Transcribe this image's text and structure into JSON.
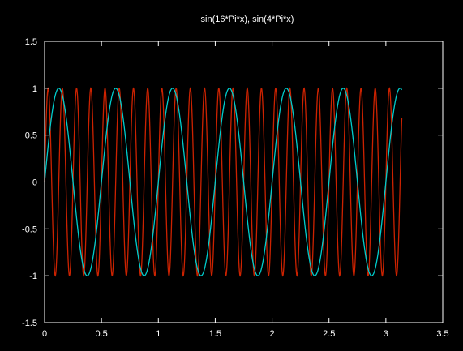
{
  "chart_data": {
    "type": "line",
    "title": "sin(16*Pi*x), sin(4*Pi*x)",
    "xlabel": "",
    "ylabel": "",
    "xlim": [
      0,
      3.5
    ],
    "ylim": [
      -1.5,
      1.5
    ],
    "xticks": [
      0,
      0.5,
      1,
      1.5,
      2,
      2.5,
      3,
      3.5
    ],
    "yticks": [
      -1.5,
      -1,
      -0.5,
      0,
      0.5,
      1,
      1.5
    ],
    "xtick_labels": [
      "0",
      "0.5",
      "1",
      "1.5",
      "2",
      "2.5",
      "3",
      "3.5"
    ],
    "ytick_labels": [
      "-1.5",
      "-1",
      "-0.5",
      "0",
      "0.5",
      "1",
      "1.5"
    ],
    "grid": false,
    "background": "#000000",
    "axis_color": "#ffffff",
    "series": [
      {
        "expression": "sin(16*Pi*x)",
        "x_range": [
          0,
          3.14
        ],
        "color": "#cc2200"
      },
      {
        "expression": "sin(4*Pi*x)",
        "x_range": [
          0,
          3.14
        ],
        "color": "#00cccc"
      }
    ]
  }
}
